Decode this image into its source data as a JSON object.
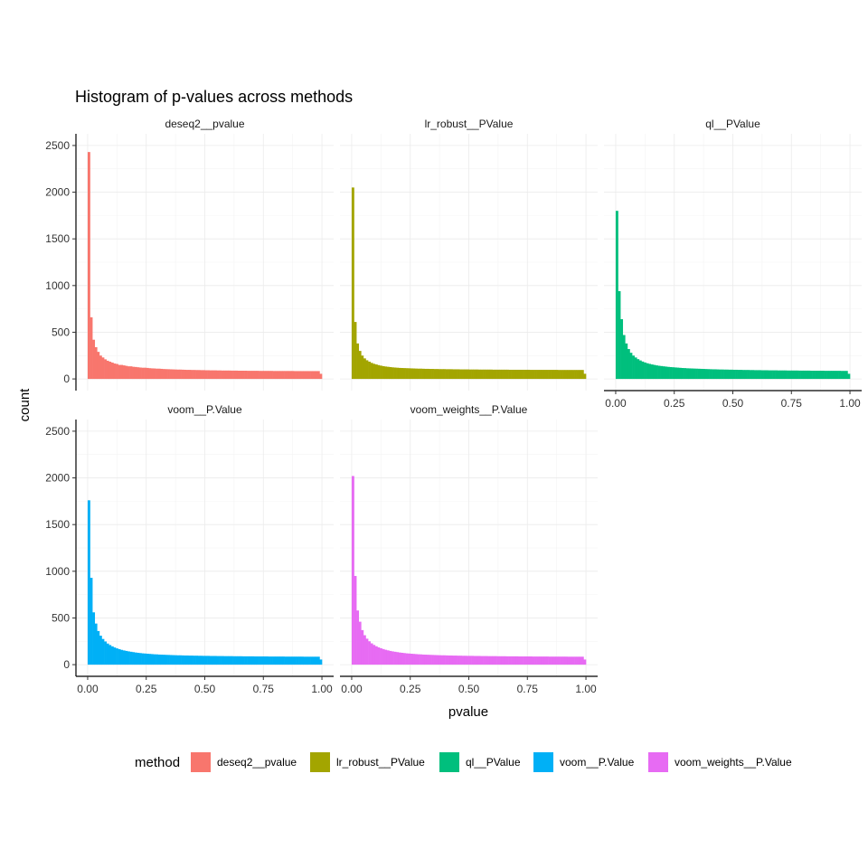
{
  "chart_data": {
    "type": "histogram",
    "title": "Histogram of p-values across methods",
    "xlabel": "pvalue",
    "ylabel": "count",
    "xlim": [
      0,
      1
    ],
    "ylim": [
      0,
      2500
    ],
    "x_ticks": [
      "0.00",
      "0.25",
      "0.50",
      "0.75",
      "1.00"
    ],
    "y_ticks": [
      "0",
      "500",
      "1000",
      "1500",
      "2000",
      "2500"
    ],
    "bins": 100,
    "bin_width": 0.01,
    "legend": {
      "title": "method",
      "position": "bottom",
      "items": [
        {
          "label": "deseq2__pvalue",
          "color": "#F8766D"
        },
        {
          "label": "lr_robust__PValue",
          "color": "#A3A500"
        },
        {
          "label": "ql__PValue",
          "color": "#00BF7D"
        },
        {
          "label": "voom__P.Value",
          "color": "#00B0F6"
        },
        {
          "label": "voom_weights__P.Value",
          "color": "#E76BF3"
        }
      ]
    },
    "panels": [
      {
        "name": "deseq2__pvalue",
        "color": "#F8766D",
        "values": [
          2430,
          660,
          420,
          340,
          290,
          250,
          230,
          210,
          195,
          185,
          175,
          165,
          160,
          150,
          150,
          145,
          140,
          135,
          135,
          130,
          128,
          125,
          122,
          120,
          120,
          118,
          115,
          113,
          112,
          110,
          110,
          108,
          106,
          105,
          104,
          103,
          102,
          101,
          100,
          100,
          99,
          98,
          97,
          97,
          96,
          96,
          95,
          95,
          94,
          94,
          93,
          93,
          92,
          92,
          92,
          91,
          91,
          90,
          90,
          90,
          90,
          89,
          89,
          89,
          88,
          88,
          88,
          88,
          87,
          87,
          87,
          87,
          87,
          86,
          86,
          86,
          86,
          86,
          86,
          85,
          85,
          85,
          85,
          85,
          85,
          85,
          85,
          85,
          84,
          84,
          84,
          84,
          84,
          84,
          84,
          84,
          84,
          84,
          84,
          55
        ]
      },
      {
        "name": "lr_robust__PValue",
        "color": "#A3A500",
        "values": [
          2050,
          610,
          380,
          300,
          250,
          220,
          200,
          185,
          172,
          162,
          155,
          148,
          142,
          137,
          133,
          130,
          127,
          124,
          122,
          120,
          118,
          117,
          116,
          115,
          114,
          113,
          112,
          111,
          110,
          110,
          109,
          108,
          108,
          107,
          107,
          106,
          106,
          105,
          105,
          105,
          104,
          104,
          104,
          103,
          103,
          103,
          102,
          102,
          102,
          102,
          101,
          101,
          101,
          101,
          100,
          100,
          100,
          100,
          100,
          100,
          99,
          99,
          99,
          99,
          99,
          99,
          99,
          98,
          98,
          98,
          98,
          98,
          98,
          98,
          98,
          98,
          97,
          97,
          97,
          97,
          97,
          97,
          97,
          97,
          97,
          97,
          97,
          97,
          96,
          96,
          96,
          96,
          96,
          96,
          96,
          96,
          96,
          96,
          96,
          55
        ]
      },
      {
        "name": "ql__PValue",
        "color": "#00BF7D",
        "values": [
          1800,
          940,
          640,
          470,
          380,
          320,
          280,
          250,
          230,
          212,
          198,
          186,
          176,
          168,
          161,
          155,
          150,
          145,
          141,
          138,
          135,
          132,
          129,
          127,
          125,
          123,
          121,
          119,
          117,
          116,
          114,
          113,
          112,
          111,
          110,
          109,
          108,
          107,
          106,
          105,
          104,
          103,
          103,
          102,
          101,
          101,
          100,
          100,
          99,
          99,
          98,
          98,
          97,
          97,
          96,
          96,
          96,
          95,
          95,
          94,
          94,
          94,
          93,
          93,
          93,
          92,
          92,
          92,
          92,
          91,
          91,
          91,
          91,
          90,
          90,
          90,
          90,
          90,
          89,
          89,
          89,
          89,
          89,
          88,
          88,
          88,
          88,
          88,
          88,
          87,
          87,
          87,
          87,
          87,
          87,
          87,
          86,
          86,
          86,
          55
        ]
      },
      {
        "name": "voom__P.Value",
        "color": "#00B0F6",
        "values": [
          1760,
          930,
          560,
          440,
          360,
          310,
          275,
          248,
          226,
          210,
          196,
          184,
          174,
          166,
          158,
          152,
          147,
          142,
          138,
          134,
          130,
          127,
          124,
          121,
          119,
          117,
          115,
          113,
          111,
          110,
          108,
          107,
          106,
          105,
          104,
          103,
          102,
          101,
          100,
          100,
          99,
          98,
          98,
          97,
          97,
          96,
          96,
          95,
          95,
          94,
          94,
          94,
          93,
          93,
          93,
          92,
          92,
          92,
          91,
          91,
          91,
          91,
          90,
          90,
          90,
          90,
          89,
          89,
          89,
          89,
          89,
          88,
          88,
          88,
          88,
          88,
          88,
          87,
          87,
          87,
          87,
          87,
          87,
          87,
          86,
          86,
          86,
          86,
          86,
          86,
          86,
          86,
          85,
          85,
          85,
          85,
          85,
          85,
          85,
          55
        ]
      },
      {
        "name": "voom_weights__P.Value",
        "color": "#E76BF3",
        "values": [
          2020,
          950,
          580,
          460,
          370,
          315,
          278,
          250,
          228,
          211,
          197,
          185,
          175,
          167,
          159,
          153,
          147,
          142,
          138,
          134,
          130,
          127,
          124,
          121,
          119,
          117,
          115,
          113,
          111,
          110,
          108,
          107,
          106,
          105,
          104,
          103,
          102,
          101,
          100,
          100,
          99,
          98,
          98,
          97,
          97,
          96,
          96,
          95,
          95,
          94,
          94,
          94,
          93,
          93,
          93,
          92,
          92,
          92,
          91,
          91,
          91,
          91,
          90,
          90,
          90,
          90,
          89,
          89,
          89,
          89,
          89,
          88,
          88,
          88,
          88,
          88,
          88,
          87,
          87,
          87,
          87,
          87,
          87,
          87,
          86,
          86,
          86,
          86,
          86,
          86,
          86,
          86,
          85,
          85,
          85,
          85,
          85,
          85,
          85,
          55
        ]
      }
    ]
  }
}
